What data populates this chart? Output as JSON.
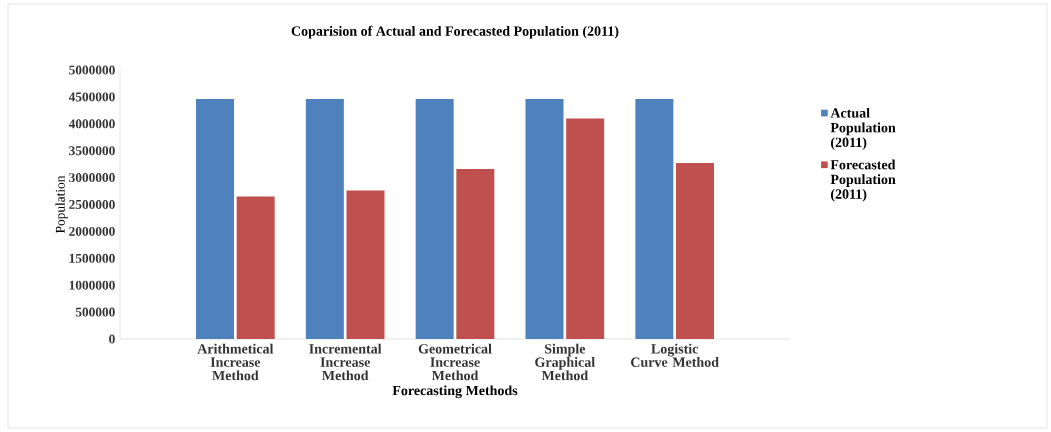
{
  "chart_data": {
    "type": "bar",
    "title": "Coparision of Actual and Forecasted Population (2011)",
    "xlabel": "Forecasting Methods",
    "ylabel": "Population",
    "categories": [
      "Arithmetical Increase Method",
      "Incremental Increase Method",
      "Geometrical Increase Method",
      "Simple Graphical Method",
      "Logistic Curve Method"
    ],
    "series": [
      {
        "name": "Actual Population (2011)",
        "color": "#4f81bd",
        "values": [
          4460000,
          4460000,
          4460000,
          4460000,
          4460000
        ]
      },
      {
        "name": "Forecasted Population (2011)",
        "color": "#c0504d",
        "values": [
          2650000,
          2760000,
          3160000,
          4100000,
          3270000
        ]
      }
    ],
    "ylim": [
      0,
      5000000
    ],
    "yticks": [
      0,
      500000,
      1000000,
      1500000,
      2000000,
      2500000,
      3000000,
      3500000,
      4000000,
      4500000,
      5000000
    ],
    "grid": false,
    "legend": "right"
  }
}
